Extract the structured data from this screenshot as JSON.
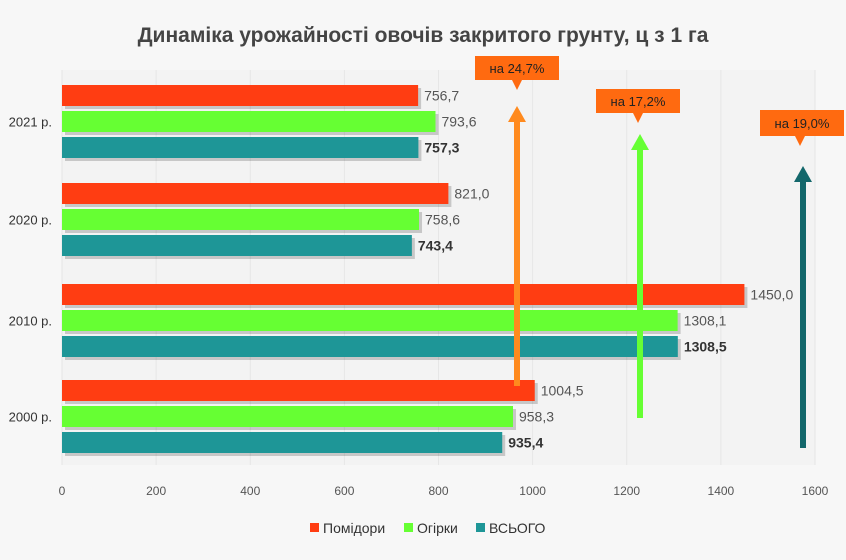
{
  "chart_data": {
    "type": "bar",
    "orientation": "horizontal",
    "title": "Динаміка урожайності овочів закритого грунту, ц з 1 га",
    "categories": [
      "2021 р.",
      "2020 р.",
      "2010 р.",
      "2000 р."
    ],
    "series": [
      {
        "name": "Помідори",
        "color": "#ff3d12",
        "values": [
          756.7,
          821.0,
          1450.0,
          1004.5
        ],
        "labels": [
          "756,7",
          "821,0",
          "1450,0",
          "1004,5"
        ]
      },
      {
        "name": "Огірки",
        "color": "#66ff33",
        "values": [
          793.6,
          758.6,
          1308.1,
          958.3
        ],
        "labels": [
          "793,6",
          "758,6",
          "1308,1",
          "958,3"
        ]
      },
      {
        "name": "ВСЬОГО",
        "color": "#1e9697",
        "values": [
          757.3,
          743.4,
          1308.5,
          935.4
        ],
        "labels": [
          "757,3",
          "743,4",
          "1308,5",
          "935,4"
        ],
        "bold_labels": true
      }
    ],
    "xlim": [
      0,
      1600
    ],
    "xticks": [
      "0",
      "200",
      "400",
      "600",
      "800",
      "1000",
      "1200",
      "1400",
      "1600"
    ],
    "legend_position": "bottom",
    "annotations": [
      {
        "text": "на 24,7%",
        "series": "Помідори",
        "direction": "up",
        "arrow_color": "#ff8a1e"
      },
      {
        "text": "на 17,2%",
        "series": "Огірки",
        "direction": "up",
        "arrow_color": "#66ff33"
      },
      {
        "text": "на 19,0%",
        "series": "ВСЬОГО",
        "direction": "up",
        "arrow_color": "#13676b"
      }
    ],
    "callout_color": "#ff6a10"
  }
}
